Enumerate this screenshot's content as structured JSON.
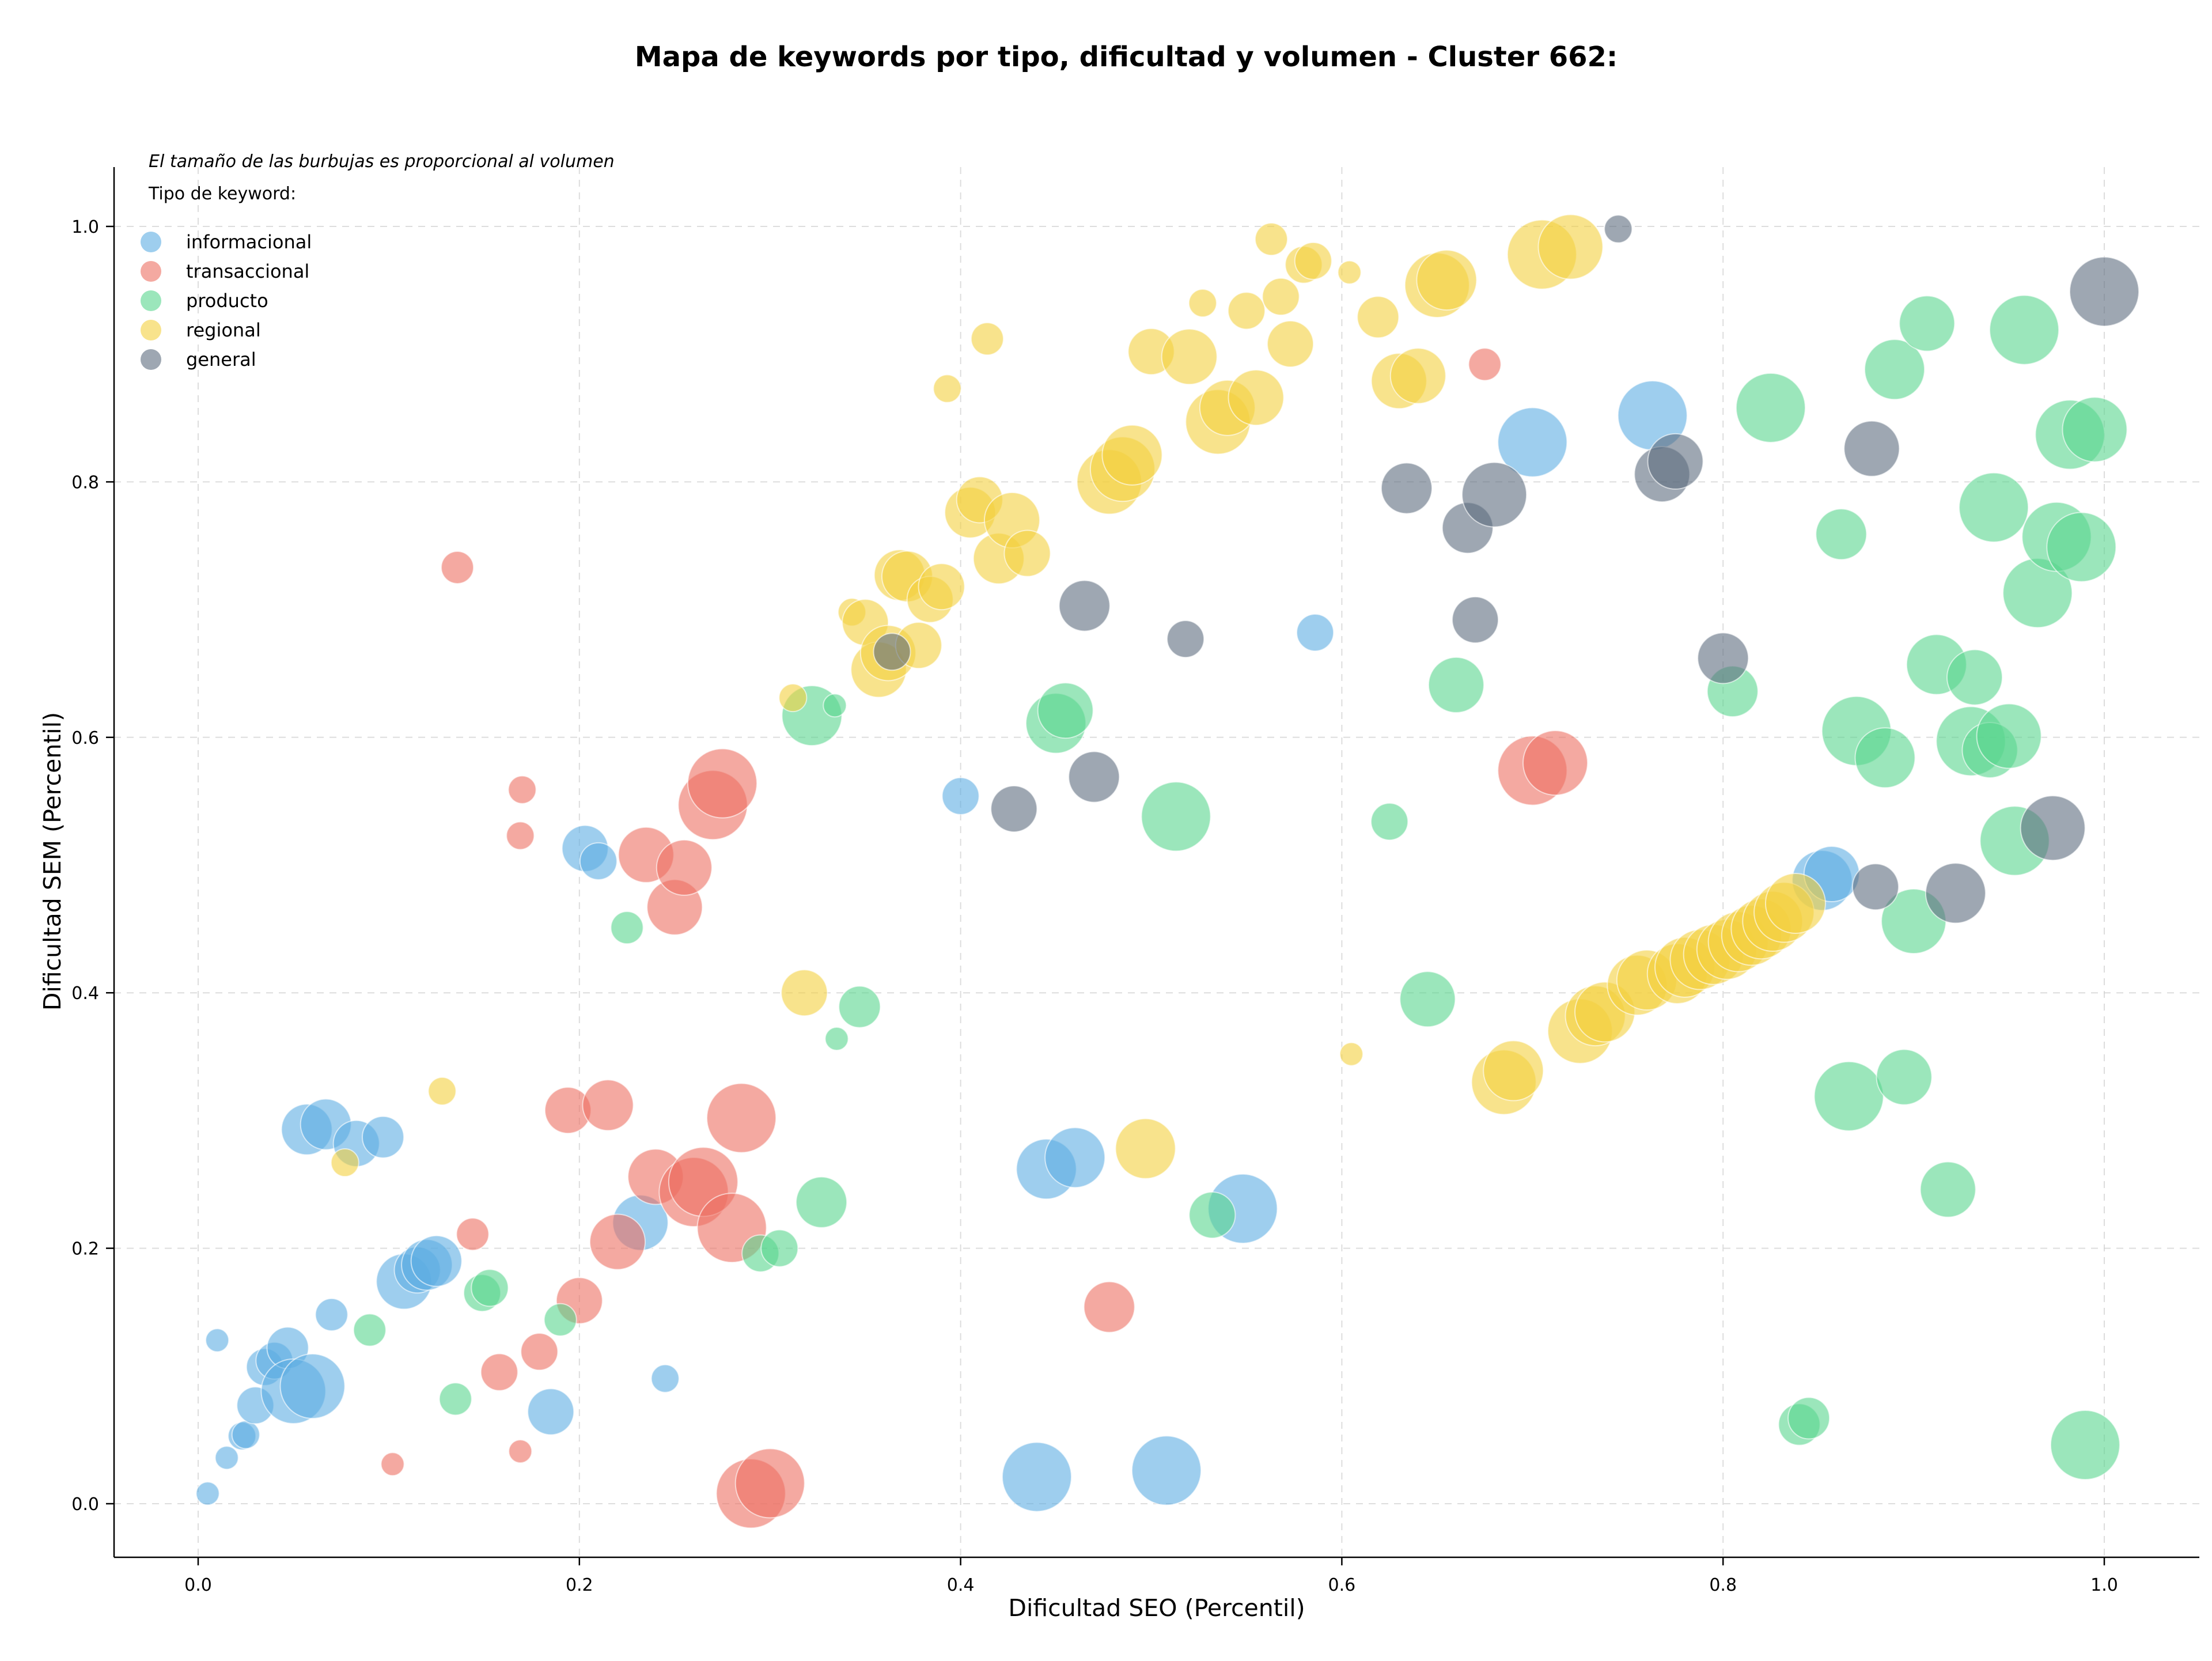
{
  "chart_data": {
    "type": "scatter",
    "title": "Mapa de keywords por tipo, dificultad y volumen - Cluster 662:",
    "xlabel": "Dificultad SEO (Percentil)",
    "ylabel": "Dificultad SEM (Percentil)",
    "xlim": [
      -0.04,
      1.05
    ],
    "ylim": [
      -0.04,
      1.05
    ],
    "xticks": [
      "0.0",
      "0.2",
      "0.4",
      "0.6",
      "0.8",
      "1.0"
    ],
    "yticks": [
      "0.0",
      "0.2",
      "0.4",
      "0.6",
      "0.8",
      "1.0"
    ],
    "grid": true,
    "legend_position": "top-left",
    "note": "El tamaño de las burbujas es proporcional al volumen",
    "legend_title": "Tipo de keyword:",
    "series": [
      {
        "name": "informacional",
        "color": "#5dade2",
        "points": [
          [
            0.005,
            0.008,
            0.5
          ],
          [
            0.01,
            0.128,
            0.5
          ],
          [
            0.015,
            0.036,
            0.5
          ],
          [
            0.023,
            0.053,
            0.6
          ],
          [
            0.025,
            0.054,
            0.6
          ],
          [
            0.03,
            0.077,
            0.8
          ],
          [
            0.035,
            0.107,
            0.8
          ],
          [
            0.04,
            0.112,
            0.8
          ],
          [
            0.047,
            0.122,
            0.9
          ],
          [
            0.05,
            0.088,
            1.4
          ],
          [
            0.06,
            0.092,
            1.4
          ],
          [
            0.07,
            0.148,
            0.7
          ],
          [
            0.057,
            0.293,
            1.1
          ],
          [
            0.067,
            0.297,
            1.1
          ],
          [
            0.083,
            0.282,
            1.0
          ],
          [
            0.097,
            0.287,
            0.9
          ],
          [
            0.108,
            0.174,
            1.2
          ],
          [
            0.115,
            0.183,
            1.0
          ],
          [
            0.12,
            0.187,
            1.1
          ],
          [
            0.125,
            0.19,
            1.1
          ],
          [
            0.185,
            0.072,
            1.0
          ],
          [
            0.203,
            0.513,
            1.0
          ],
          [
            0.21,
            0.503,
            0.8
          ],
          [
            0.232,
            0.22,
            1.2
          ],
          [
            0.245,
            0.098,
            0.6
          ],
          [
            0.4,
            0.554,
            0.8
          ],
          [
            0.44,
            0.021,
            1.5
          ],
          [
            0.445,
            0.262,
            1.3
          ],
          [
            0.46,
            0.271,
            1.3
          ],
          [
            0.508,
            0.026,
            1.5
          ],
          [
            0.548,
            0.231,
            1.5
          ],
          [
            0.586,
            0.682,
            0.8
          ],
          [
            0.7,
            0.831,
            1.5
          ],
          [
            0.852,
            0.488,
            1.3
          ],
          [
            0.857,
            0.493,
            1.2
          ],
          [
            0.763,
            0.852,
            1.5
          ]
        ]
      },
      {
        "name": "transaccional",
        "color": "#ec7063",
        "points": [
          [
            0.102,
            0.031,
            0.5
          ],
          [
            0.136,
            0.733,
            0.7
          ],
          [
            0.144,
            0.211,
            0.7
          ],
          [
            0.158,
            0.103,
            0.8
          ],
          [
            0.169,
            0.041,
            0.5
          ],
          [
            0.169,
            0.523,
            0.6
          ],
          [
            0.17,
            0.559,
            0.6
          ],
          [
            0.179,
            0.119,
            0.8
          ],
          [
            0.194,
            0.308,
            1.0
          ],
          [
            0.2,
            0.159,
            1.0
          ],
          [
            0.215,
            0.312,
            1.1
          ],
          [
            0.22,
            0.205,
            1.2
          ],
          [
            0.235,
            0.508,
            1.2
          ],
          [
            0.24,
            0.256,
            1.2
          ],
          [
            0.25,
            0.467,
            1.2
          ],
          [
            0.255,
            0.498,
            1.2
          ],
          [
            0.26,
            0.244,
            1.5
          ],
          [
            0.265,
            0.252,
            1.5
          ],
          [
            0.27,
            0.547,
            1.5
          ],
          [
            0.275,
            0.564,
            1.5
          ],
          [
            0.28,
            0.216,
            1.5
          ],
          [
            0.285,
            0.302,
            1.5
          ],
          [
            0.29,
            0.008,
            1.5
          ],
          [
            0.3,
            0.016,
            1.5
          ],
          [
            0.478,
            0.154,
            1.1
          ],
          [
            0.675,
            0.892,
            0.7
          ],
          [
            0.7,
            0.574,
            1.5
          ],
          [
            0.712,
            0.58,
            1.4
          ]
        ]
      },
      {
        "name": "producto",
        "color": "#58d68d",
        "points": [
          [
            0.09,
            0.136,
            0.7
          ],
          [
            0.135,
            0.082,
            0.7
          ],
          [
            0.149,
            0.165,
            0.8
          ],
          [
            0.153,
            0.169,
            0.8
          ],
          [
            0.19,
            0.144,
            0.7
          ],
          [
            0.225,
            0.451,
            0.7
          ],
          [
            0.295,
            0.196,
            0.8
          ],
          [
            0.305,
            0.2,
            0.8
          ],
          [
            0.322,
            0.617,
            1.3
          ],
          [
            0.327,
            0.236,
            1.1
          ],
          [
            0.334,
            0.625,
            0.5
          ],
          [
            0.335,
            0.364,
            0.5
          ],
          [
            0.347,
            0.389,
            0.9
          ],
          [
            0.45,
            0.611,
            1.3
          ],
          [
            0.455,
            0.621,
            1.2
          ],
          [
            0.513,
            0.538,
            1.5
          ],
          [
            0.532,
            0.226,
            1.0
          ],
          [
            0.625,
            0.534,
            0.8
          ],
          [
            0.645,
            0.395,
            1.2
          ],
          [
            0.66,
            0.641,
            1.2
          ],
          [
            0.805,
            0.636,
            1.1
          ],
          [
            0.825,
            0.858,
            1.5
          ],
          [
            0.84,
            0.062,
            0.9
          ],
          [
            0.845,
            0.067,
            0.9
          ],
          [
            0.862,
            0.759,
            1.1
          ],
          [
            0.866,
            0.319,
            1.5
          ],
          [
            0.87,
            0.605,
            1.5
          ],
          [
            0.885,
            0.584,
            1.3
          ],
          [
            0.89,
            0.888,
            1.3
          ],
          [
            0.895,
            0.334,
            1.2
          ],
          [
            0.9,
            0.456,
            1.4
          ],
          [
            0.907,
            0.924,
            1.2
          ],
          [
            0.912,
            0.657,
            1.3
          ],
          [
            0.918,
            0.246,
            1.2
          ],
          [
            0.93,
            0.597,
            1.5
          ],
          [
            0.932,
            0.647,
            1.2
          ],
          [
            0.94,
            0.59,
            1.2
          ],
          [
            0.942,
            0.78,
            1.5
          ],
          [
            0.95,
            0.601,
            1.4
          ],
          [
            0.953,
            0.519,
            1.5
          ],
          [
            0.958,
            0.919,
            1.5
          ],
          [
            0.965,
            0.713,
            1.5
          ],
          [
            0.975,
            0.757,
            1.5
          ],
          [
            0.982,
            0.837,
            1.5
          ],
          [
            0.988,
            0.749,
            1.5
          ],
          [
            0.99,
            0.046,
            1.5
          ],
          [
            0.995,
            0.841,
            1.4
          ]
        ]
      },
      {
        "name": "regional",
        "color": "#f4d03f",
        "points": [
          [
            0.077,
            0.267,
            0.6
          ],
          [
            0.128,
            0.323,
            0.6
          ],
          [
            0.312,
            0.631,
            0.6
          ],
          [
            0.318,
            0.4,
            1.0
          ],
          [
            0.343,
            0.698,
            0.6
          ],
          [
            0.35,
            0.69,
            1.0
          ],
          [
            0.357,
            0.653,
            1.2
          ],
          [
            0.362,
            0.666,
            1.2
          ],
          [
            0.368,
            0.727,
            1.1
          ],
          [
            0.372,
            0.726,
            1.1
          ],
          [
            0.378,
            0.672,
            1.0
          ],
          [
            0.384,
            0.708,
            1.0
          ],
          [
            0.39,
            0.718,
            1.0
          ],
          [
            0.393,
            0.873,
            0.6
          ],
          [
            0.405,
            0.776,
            1.1
          ],
          [
            0.41,
            0.786,
            1.0
          ],
          [
            0.414,
            0.912,
            0.7
          ],
          [
            0.42,
            0.74,
            1.1
          ],
          [
            0.427,
            0.77,
            1.2
          ],
          [
            0.435,
            0.744,
            1.0
          ],
          [
            0.478,
            0.8,
            1.4
          ],
          [
            0.485,
            0.81,
            1.4
          ],
          [
            0.49,
            0.821,
            1.3
          ],
          [
            0.497,
            0.278,
            1.3
          ],
          [
            0.5,
            0.902,
            1.0
          ],
          [
            0.52,
            0.898,
            1.2
          ],
          [
            0.527,
            0.94,
            0.6
          ],
          [
            0.535,
            0.847,
            1.4
          ],
          [
            0.54,
            0.858,
            1.2
          ],
          [
            0.55,
            0.934,
            0.8
          ],
          [
            0.555,
            0.866,
            1.2
          ],
          [
            0.563,
            0.99,
            0.7
          ],
          [
            0.568,
            0.945,
            0.8
          ],
          [
            0.573,
            0.908,
            1.0
          ],
          [
            0.58,
            0.97,
            0.8
          ],
          [
            0.585,
            0.973,
            0.8
          ],
          [
            0.604,
            0.964,
            0.5
          ],
          [
            0.605,
            0.352,
            0.5
          ],
          [
            0.619,
            0.929,
            0.9
          ],
          [
            0.63,
            0.879,
            1.2
          ],
          [
            0.64,
            0.883,
            1.2
          ],
          [
            0.65,
            0.954,
            1.4
          ],
          [
            0.655,
            0.958,
            1.3
          ],
          [
            0.685,
            0.33,
            1.4
          ],
          [
            0.69,
            0.339,
            1.3
          ],
          [
            0.705,
            0.978,
            1.5
          ],
          [
            0.72,
            0.984,
            1.4
          ],
          [
            0.725,
            0.37,
            1.4
          ],
          [
            0.733,
            0.382,
            1.3
          ],
          [
            0.738,
            0.385,
            1.3
          ],
          [
            0.755,
            0.406,
            1.3
          ],
          [
            0.76,
            0.41,
            1.3
          ],
          [
            0.776,
            0.415,
            1.3
          ],
          [
            0.78,
            0.42,
            1.3
          ],
          [
            0.788,
            0.426,
            1.3
          ],
          [
            0.795,
            0.43,
            1.3
          ],
          [
            0.802,
            0.434,
            1.3
          ],
          [
            0.808,
            0.44,
            1.3
          ],
          [
            0.815,
            0.445,
            1.3
          ],
          [
            0.82,
            0.45,
            1.3
          ],
          [
            0.826,
            0.456,
            1.3
          ],
          [
            0.832,
            0.463,
            1.3
          ],
          [
            0.838,
            0.47,
            1.3
          ]
        ]
      },
      {
        "name": "general",
        "color": "#5d6d7e",
        "points": [
          [
            0.364,
            0.667,
            0.8
          ],
          [
            0.428,
            0.544,
            1.0
          ],
          [
            0.465,
            0.703,
            1.1
          ],
          [
            0.47,
            0.569,
            1.1
          ],
          [
            0.518,
            0.677,
            0.8
          ],
          [
            0.634,
            0.795,
            1.1
          ],
          [
            0.666,
            0.764,
            1.1
          ],
          [
            0.67,
            0.692,
            1.0
          ],
          [
            0.68,
            0.79,
            1.4
          ],
          [
            0.745,
            0.998,
            0.6
          ],
          [
            0.768,
            0.806,
            1.2
          ],
          [
            0.775,
            0.816,
            1.2
          ],
          [
            0.8,
            0.662,
            1.1
          ],
          [
            0.878,
            0.826,
            1.2
          ],
          [
            0.88,
            0.483,
            1.0
          ],
          [
            0.922,
            0.478,
            1.3
          ],
          [
            0.973,
            0.529,
            1.4
          ],
          [
            1.0,
            0.949,
            1.5
          ]
        ]
      }
    ]
  }
}
